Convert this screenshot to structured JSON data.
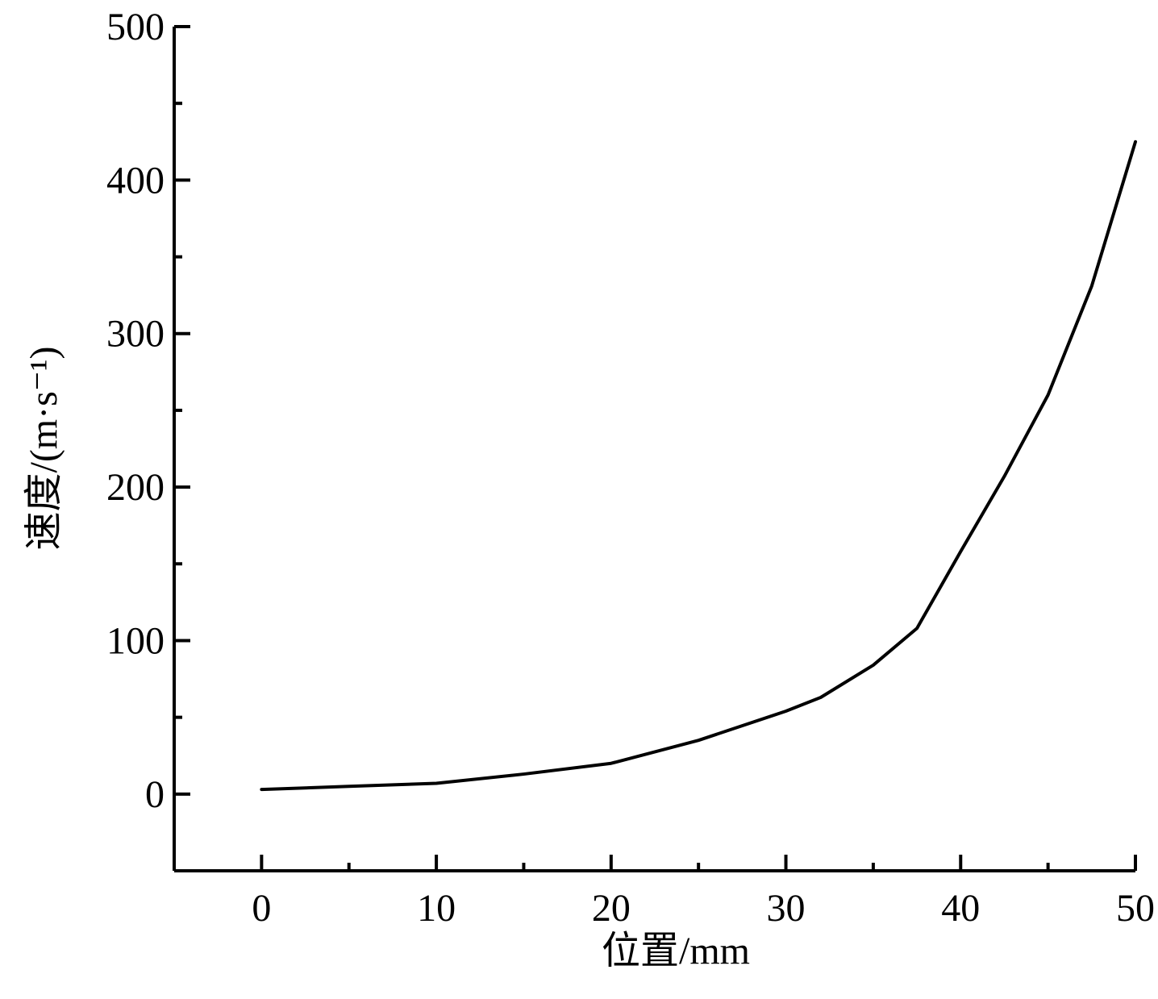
{
  "chart_data": {
    "type": "line",
    "x_label": "位置/mm",
    "y_label": "速度/(m·s⁻¹)",
    "x": [
      0,
      5,
      10,
      15,
      20,
      25,
      30,
      32,
      35,
      37.5,
      40,
      42.5,
      45,
      47.5,
      50
    ],
    "series": [
      {
        "color": "#000000",
        "values": [
          3,
          5,
          7,
          13,
          20,
          35,
          54,
          63,
          84,
          108,
          158,
          207,
          260,
          331,
          425
        ]
      }
    ],
    "xlim": [
      -5,
      50
    ],
    "ylim": [
      -50,
      500
    ],
    "xticks": [
      0,
      10,
      20,
      30,
      40,
      50
    ],
    "yticks": [
      0,
      100,
      200,
      300,
      400,
      500
    ],
    "xminorticks": [
      5,
      15,
      25,
      35,
      45
    ],
    "yminorticks": [
      50,
      150,
      250,
      350,
      450
    ],
    "grid": false
  }
}
